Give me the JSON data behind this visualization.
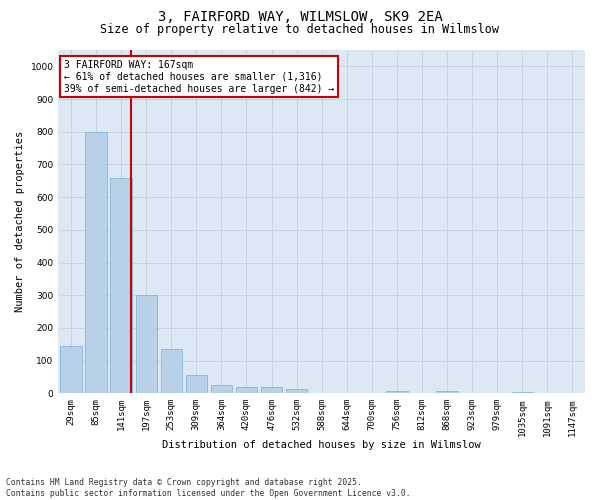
{
  "title": "3, FAIRFORD WAY, WILMSLOW, SK9 2EA",
  "subtitle": "Size of property relative to detached houses in Wilmslow",
  "xlabel": "Distribution of detached houses by size in Wilmslow",
  "ylabel": "Number of detached properties",
  "categories": [
    "29sqm",
    "85sqm",
    "141sqm",
    "197sqm",
    "253sqm",
    "309sqm",
    "364sqm",
    "420sqm",
    "476sqm",
    "532sqm",
    "588sqm",
    "644sqm",
    "700sqm",
    "756sqm",
    "812sqm",
    "868sqm",
    "923sqm",
    "979sqm",
    "1035sqm",
    "1091sqm",
    "1147sqm"
  ],
  "values": [
    145,
    800,
    660,
    300,
    135,
    55,
    27,
    18,
    18,
    14,
    2,
    0,
    0,
    8,
    0,
    7,
    0,
    0,
    5,
    0,
    0
  ],
  "bar_color": "#b8d0e8",
  "bar_edge_color": "#7aafd4",
  "grid_color": "#c8d4e0",
  "bg_color": "#dce8f4",
  "vline_color": "#cc0000",
  "annotation_box_color": "#cc0000",
  "annotation_title": "3 FAIRFORD WAY: 167sqm",
  "annotation_line1": "← 61% of detached houses are smaller (1,316)",
  "annotation_line2": "39% of semi-detached houses are larger (842) →",
  "ylim": [
    0,
    1050
  ],
  "yticks": [
    0,
    100,
    200,
    300,
    400,
    500,
    600,
    700,
    800,
    900,
    1000
  ],
  "footnote1": "Contains HM Land Registry data © Crown copyright and database right 2025.",
  "footnote2": "Contains public sector information licensed under the Open Government Licence v3.0.",
  "title_fontsize": 10,
  "subtitle_fontsize": 8.5,
  "axis_label_fontsize": 7.5,
  "tick_fontsize": 6.5,
  "annotation_fontsize": 7,
  "footnote_fontsize": 5.8,
  "vline_pos": 2.4
}
